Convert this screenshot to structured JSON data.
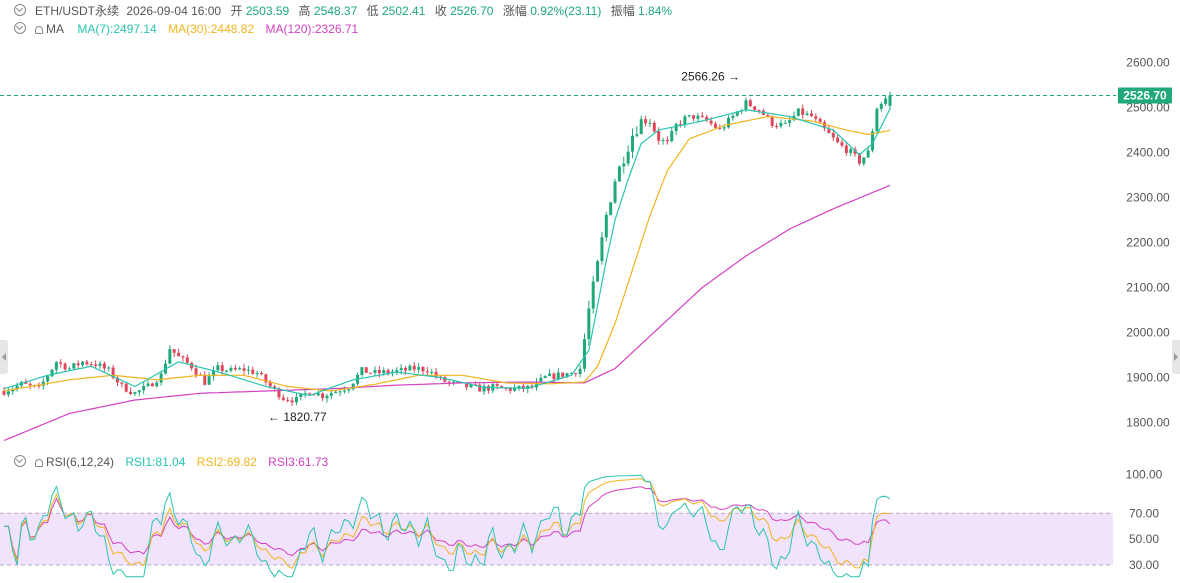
{
  "colors": {
    "up": "#1fa87a",
    "down": "#e0475b",
    "ma7": "#28c4b0",
    "ma30": "#f0b41e",
    "ma120": "#d43fc2",
    "rsi1": "#28c4b0",
    "rsi2": "#f0b41e",
    "rsi3": "#d43fc2",
    "rsi_band": "#f1e3fb",
    "price_line": "#1fa87a",
    "grid_text": "#555555"
  },
  "header": {
    "symbol": "ETH/USDT永续",
    "datetime": "2026-09-04 16:00",
    "open_label": "开",
    "open": "2503.59",
    "high_label": "高",
    "high": "2548.37",
    "low_label": "低",
    "low": "2502.41",
    "close_label": "收",
    "close": "2526.70",
    "change_label": "涨幅",
    "change": "0.92%(23.11)",
    "amplitude_label": "振幅",
    "amplitude": "1.84%"
  },
  "ma_legend": {
    "name": "MA",
    "ma7": "MA(7):2497.14",
    "ma30": "MA(30):2448.82",
    "ma120": "MA(120):2326.71"
  },
  "rsi_legend": {
    "name": "RSI(6,12,24)",
    "rsi1": "RSI1:81.04",
    "rsi2": "RSI2:69.82",
    "rsi3": "RSI3:61.73"
  },
  "chart_data": [
    {
      "type": "candlestick",
      "title": "ETH/USDT永续",
      "y_ticks": [
        1800,
        1900,
        2000,
        2100,
        2200,
        2300,
        2400,
        2500,
        2600
      ],
      "y_tick_labels": [
        "1800.00",
        "1900.00",
        "2000.00",
        "2100.00",
        "2200.00",
        "2300.00",
        "2400.00",
        "2500.00",
        "2600.00"
      ],
      "ylim": [
        1750,
        2650
      ],
      "last_price": 2526.7,
      "last_price_label": "2526.70",
      "annotations": [
        {
          "label": "2566.26 →",
          "value": 2566.26
        },
        {
          "label": "← 1820.77",
          "value": 1820.77
        }
      ],
      "price_path": [
        [
          0,
          1870
        ],
        [
          4,
          1885
        ],
        [
          8,
          1875
        ],
        [
          12,
          1935
        ],
        [
          15,
          1920
        ],
        [
          18,
          1935
        ],
        [
          21,
          1930
        ],
        [
          24,
          1915
        ],
        [
          27,
          1880
        ],
        [
          30,
          1865
        ],
        [
          33,
          1880
        ],
        [
          36,
          1905
        ],
        [
          38,
          1965
        ],
        [
          40,
          1945
        ],
        [
          43,
          1925
        ],
        [
          46,
          1890
        ],
        [
          49,
          1920
        ],
        [
          52,
          1915
        ],
        [
          55,
          1918
        ],
        [
          58,
          1910
        ],
        [
          61,
          1880
        ],
        [
          64,
          1855
        ],
        [
          67,
          1850
        ],
        [
          70,
          1870
        ],
        [
          73,
          1860
        ],
        [
          76,
          1870
        ],
        [
          79,
          1880
        ],
        [
          82,
          1915
        ],
        [
          85,
          1910
        ],
        [
          88,
          1912
        ],
        [
          91,
          1915
        ],
        [
          94,
          1920
        ],
        [
          97,
          1918
        ],
        [
          100,
          1895
        ],
        [
          103,
          1885
        ],
        [
          106,
          1880
        ],
        [
          109,
          1875
        ],
        [
          112,
          1878
        ],
        [
          115,
          1874
        ],
        [
          118,
          1875
        ],
        [
          121,
          1878
        ],
        [
          124,
          1900
        ],
        [
          127,
          1905
        ],
        [
          130,
          1910
        ],
        [
          132,
          1920
        ],
        [
          134,
          2050
        ],
        [
          136,
          2150
        ],
        [
          138,
          2260
        ],
        [
          140,
          2340
        ],
        [
          142,
          2390
        ],
        [
          144,
          2440
        ],
        [
          146,
          2470
        ],
        [
          148,
          2470
        ],
        [
          150,
          2430
        ],
        [
          152,
          2420
        ],
        [
          154,
          2460
        ],
        [
          156,
          2475
        ],
        [
          158,
          2480
        ],
        [
          161,
          2470
        ],
        [
          164,
          2450
        ],
        [
          167,
          2480
        ],
        [
          170,
          2510
        ],
        [
          173,
          2495
        ],
        [
          176,
          2465
        ],
        [
          179,
          2460
        ],
        [
          182,
          2490
        ],
        [
          185,
          2480
        ],
        [
          188,
          2450
        ],
        [
          191,
          2420
        ],
        [
          194,
          2400
        ],
        [
          196,
          2380
        ],
        [
          198,
          2400
        ],
        [
          200,
          2500
        ],
        [
          202,
          2520
        ],
        [
          203,
          2527
        ]
      ],
      "ma7_path": [
        [
          0,
          1875
        ],
        [
          10,
          1905
        ],
        [
          20,
          1925
        ],
        [
          30,
          1880
        ],
        [
          40,
          1935
        ],
        [
          50,
          1910
        ],
        [
          60,
          1880
        ],
        [
          70,
          1860
        ],
        [
          80,
          1895
        ],
        [
          90,
          1912
        ],
        [
          100,
          1900
        ],
        [
          110,
          1878
        ],
        [
          120,
          1876
        ],
        [
          130,
          1905
        ],
        [
          134,
          1960
        ],
        [
          136,
          2060
        ],
        [
          138,
          2160
        ],
        [
          140,
          2250
        ],
        [
          143,
          2340
        ],
        [
          146,
          2420
        ],
        [
          150,
          2450
        ],
        [
          160,
          2470
        ],
        [
          170,
          2495
        ],
        [
          180,
          2480
        ],
        [
          190,
          2450
        ],
        [
          196,
          2395
        ],
        [
          199,
          2420
        ],
        [
          203,
          2497
        ]
      ],
      "ma30_path": [
        [
          0,
          1870
        ],
        [
          15,
          1895
        ],
        [
          25,
          1905
        ],
        [
          35,
          1895
        ],
        [
          45,
          1905
        ],
        [
          55,
          1905
        ],
        [
          65,
          1880
        ],
        [
          75,
          1870
        ],
        [
          85,
          1885
        ],
        [
          95,
          1905
        ],
        [
          105,
          1905
        ],
        [
          115,
          1888
        ],
        [
          125,
          1886
        ],
        [
          133,
          1890
        ],
        [
          136,
          1925
        ],
        [
          140,
          2020
        ],
        [
          144,
          2140
        ],
        [
          148,
          2260
        ],
        [
          152,
          2360
        ],
        [
          157,
          2430
        ],
        [
          165,
          2460
        ],
        [
          175,
          2480
        ],
        [
          185,
          2470
        ],
        [
          193,
          2450
        ],
        [
          198,
          2440
        ],
        [
          203,
          2449
        ]
      ],
      "ma120_path": [
        [
          0,
          1760
        ],
        [
          15,
          1820
        ],
        [
          30,
          1850
        ],
        [
          45,
          1865
        ],
        [
          60,
          1870
        ],
        [
          75,
          1875
        ],
        [
          90,
          1883
        ],
        [
          105,
          1888
        ],
        [
          120,
          1890
        ],
        [
          133,
          1888
        ],
        [
          140,
          1920
        ],
        [
          150,
          2010
        ],
        [
          160,
          2100
        ],
        [
          170,
          2170
        ],
        [
          180,
          2230
        ],
        [
          190,
          2275
        ],
        [
          203,
          2327
        ]
      ]
    },
    {
      "type": "line",
      "title": "RSI(6,12,24)",
      "y_ticks": [
        30,
        50,
        70,
        100
      ],
      "y_tick_labels": [
        "30.00",
        "50.00",
        "70.00",
        "100.00"
      ],
      "ylim": [
        20,
        105
      ],
      "band": [
        30,
        70
      ],
      "series": [
        {
          "name": "RSI1",
          "value": 81.04
        },
        {
          "name": "RSI2",
          "value": 69.82
        },
        {
          "name": "RSI3",
          "value": 61.73
        }
      ]
    }
  ]
}
